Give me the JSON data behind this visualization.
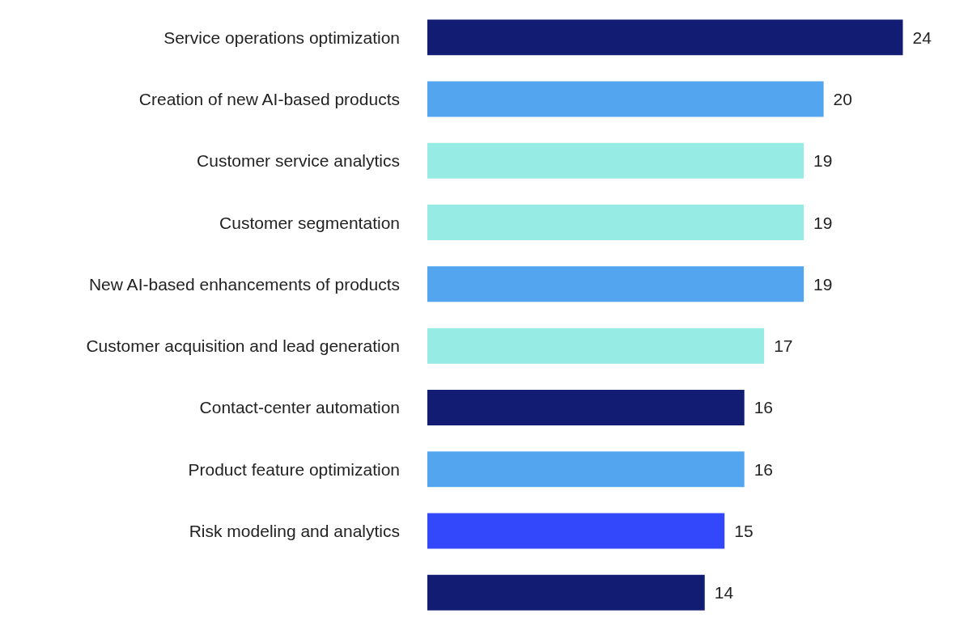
{
  "chart_data": {
    "type": "bar",
    "orientation": "horizontal",
    "categories": [
      "Service operations optimization",
      "Creation of new AI-based products",
      "Customer service analytics",
      "Customer segmentation",
      "New AI-based enhancements of products",
      "Customer acquisition and lead generation",
      "Contact-center automation",
      "Product feature optimization",
      "Risk modeling and analytics",
      null
    ],
    "values": [
      24,
      20,
      19,
      19,
      19,
      17,
      16,
      16,
      15,
      14
    ],
    "colors": [
      "#131c73",
      "#52a5ee",
      "#96ebe4",
      "#96ebe4",
      "#52a5ee",
      "#96ebe4",
      "#131c73",
      "#52a5ee",
      "#3448fb",
      "#131c73"
    ],
    "data_labels": true
  }
}
